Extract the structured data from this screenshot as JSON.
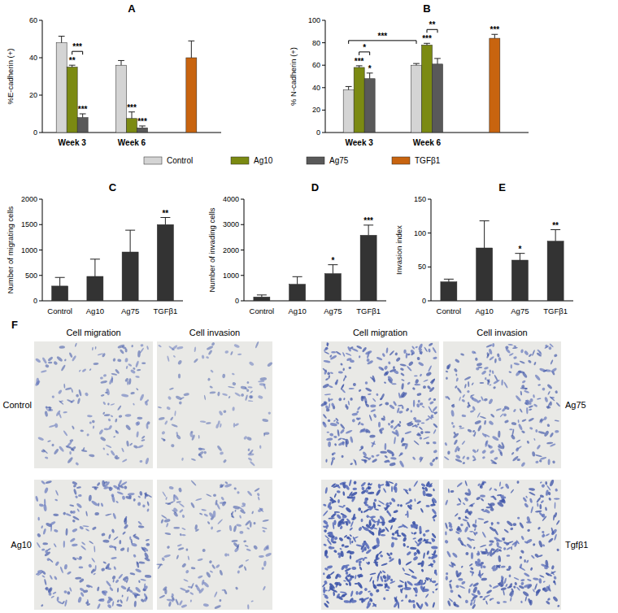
{
  "chart_data": [
    {
      "type": "bar",
      "title": "A",
      "y_label": "%E-cadherin (+)",
      "categories": [
        "Week 3",
        "Week 6",
        null
      ],
      "series": [
        {
          "name": "Control",
          "color": "#d4d4d4",
          "values": [
            48,
            36,
            null
          ],
          "errors": [
            3.5,
            2.5,
            null
          ]
        },
        {
          "name": "Ag10",
          "color": "#7b8a12",
          "values": [
            35,
            7.5,
            null
          ],
          "errors": [
            1,
            3.5,
            null
          ],
          "significance": [
            "**",
            "***",
            null
          ]
        },
        {
          "name": "Ag75",
          "color": "#595959",
          "values": [
            8,
            2.5,
            null
          ],
          "errors": [
            2,
            1,
            null
          ],
          "significance": [
            "***",
            "***",
            null
          ]
        },
        {
          "name": "TGFβ1",
          "color": "#c8640f",
          "values": [
            null,
            null,
            40
          ],
          "errors": [
            null,
            null,
            9
          ]
        }
      ],
      "ylim": [
        0,
        60
      ],
      "yticks": [
        0,
        20,
        40,
        60
      ],
      "legend": "bottom",
      "comparisons": [
        {
          "text": "***",
          "from": {
            "series": "Ag10",
            "category": "Week 3"
          },
          "to": {
            "series": "Ag75",
            "category": "Week 3"
          }
        }
      ]
    },
    {
      "type": "bar",
      "title": "B",
      "y_label": "% N-cadherin (+)",
      "categories": [
        "Week 3",
        "Week 6",
        null
      ],
      "series": [
        {
          "name": "Control",
          "color": "#d4d4d4",
          "values": [
            38,
            60,
            null
          ],
          "errors": [
            3,
            1.5,
            null
          ]
        },
        {
          "name": "Ag10",
          "color": "#7b8a12",
          "values": [
            58,
            78,
            null
          ],
          "errors": [
            1.5,
            1.5,
            null
          ],
          "significance": [
            "***",
            "***",
            null
          ]
        },
        {
          "name": "Ag75",
          "color": "#595959",
          "values": [
            48,
            61,
            null
          ],
          "errors": [
            5,
            5,
            null
          ],
          "significance": [
            "*",
            null,
            null
          ]
        },
        {
          "name": "TGFβ1",
          "color": "#c8640f",
          "values": [
            null,
            null,
            84
          ],
          "errors": [
            null,
            null,
            3.5
          ],
          "significance": [
            null,
            null,
            "***"
          ]
        }
      ],
      "ylim": [
        0,
        100
      ],
      "yticks": [
        0,
        20,
        40,
        60,
        80,
        100
      ],
      "comparisons": [
        {
          "text": "*",
          "from": {
            "series": "Ag10",
            "category": "Week 3"
          },
          "to": {
            "series": "Ag75",
            "category": "Week 3"
          }
        },
        {
          "text": "**",
          "from": {
            "series": "Ag10",
            "category": "Week 6"
          },
          "to": {
            "series": "Ag75",
            "category": "Week 6"
          }
        },
        {
          "text": "***",
          "from": {
            "series": "Control",
            "category": "Week 3"
          },
          "to": {
            "series": "Control",
            "category": "Week 6"
          }
        }
      ]
    },
    {
      "type": "bar",
      "title": "C",
      "y_label": "Number of migrating cells",
      "categories": [
        "Control",
        "Ag10",
        "Ag75",
        "TGFβ1"
      ],
      "values": [
        290,
        480,
        960,
        1500
      ],
      "errors": [
        170,
        340,
        430,
        140
      ],
      "significance": [
        null,
        null,
        null,
        "**"
      ],
      "color": "#333333",
      "ylim": [
        0,
        2000
      ],
      "yticks": [
        0,
        500,
        1000,
        1500,
        2000
      ]
    },
    {
      "type": "bar",
      "title": "D",
      "y_label": "Number of invading cells",
      "categories": [
        "Control",
        "Ag10",
        "Ag75",
        "TGFβ1"
      ],
      "values": [
        150,
        650,
        1070,
        2580
      ],
      "errors": [
        80,
        300,
        350,
        400
      ],
      "significance": [
        null,
        null,
        "*",
        "***"
      ],
      "color": "#333333",
      "ylim": [
        0,
        4000
      ],
      "yticks": [
        0,
        1000,
        2000,
        3000,
        4000
      ]
    },
    {
      "type": "bar",
      "title": "E",
      "y_label": "Invasion index",
      "categories": [
        "Control",
        "Ag10",
        "Ag75",
        "TGFβ1"
      ],
      "values": [
        28,
        78,
        60,
        88
      ],
      "errors": [
        4,
        40,
        10,
        17
      ],
      "significance": [
        null,
        null,
        "*",
        "**"
      ],
      "color": "#333333",
      "ylim": [
        0,
        150
      ],
      "yticks": [
        0,
        50,
        100,
        150
      ]
    }
  ],
  "micrographs": {
    "title": "F",
    "column_headers": [
      "Cell migration",
      "Cell invasion",
      "Cell migration",
      "Cell invasion"
    ],
    "row_labels": [
      "Control",
      "Ag10",
      "Ag75",
      "Tgfβ1"
    ]
  }
}
